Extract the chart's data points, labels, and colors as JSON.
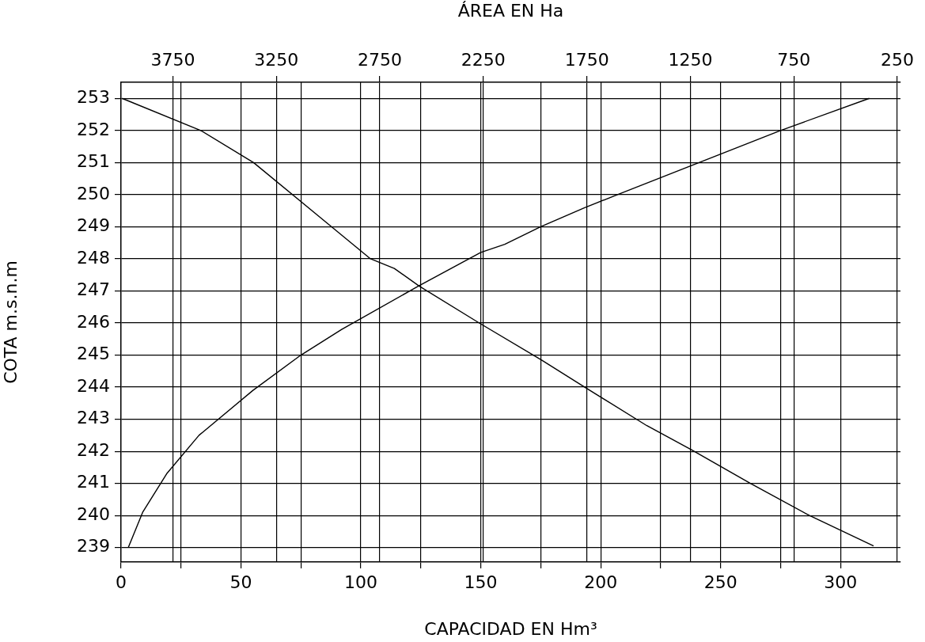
{
  "chart_data": {
    "type": "line",
    "xlabel": "CAPACIDAD EN Hm³",
    "x2label": "ÁREA EN Ha",
    "ylabel": "COTA m.s.n.m",
    "xlim": [
      0,
      325
    ],
    "xticks": [
      0,
      {
        "value": 25,
        "label": null
      },
      50,
      {
        "value": 75,
        "label": null
      },
      100,
      {
        "value": 125,
        "label": null
      },
      150,
      {
        "value": 175,
        "label": null
      },
      200,
      {
        "value": 225,
        "label": null
      },
      250,
      {
        "value": 275,
        "label": null
      },
      300
    ],
    "x2lim": [
      4000,
      235
    ],
    "x2ticks": [
      3750,
      3250,
      2750,
      2250,
      1750,
      1250,
      750,
      250
    ],
    "ylim": [
      238.55,
      253.5
    ],
    "yticks": [
      239,
      240,
      241,
      242,
      243,
      244,
      245,
      246,
      247,
      248,
      249,
      250,
      251,
      252,
      253
    ],
    "grid": true,
    "legend": false,
    "marker": "none",
    "line_style": "solid",
    "series": [
      {
        "color": "#000000",
        "x": [
          3,
          9,
          19,
          32.5,
          55,
          75,
          92,
          124,
          150,
          160,
          175,
          193.5,
          207,
          241,
          275,
          312
        ],
        "values": [
          239,
          240.1,
          241.3,
          242.5,
          243.9,
          245,
          245.8,
          247.15,
          248.2,
          248.45,
          249,
          249.6,
          250,
          251,
          252,
          253
        ]
      },
      {
        "color": "#000000",
        "axis": "x2",
        "x": [
          3995,
          3615,
          3360,
          3040,
          2795,
          2680,
          2560,
          2270,
          1970,
          1760,
          1460,
          1245,
          960,
          675,
          365
        ],
        "values": [
          253,
          252,
          251,
          249.3,
          248,
          247.7,
          247.15,
          246,
          244.85,
          244,
          242.8,
          242.05,
          241,
          240,
          239.05
        ]
      }
    ]
  }
}
